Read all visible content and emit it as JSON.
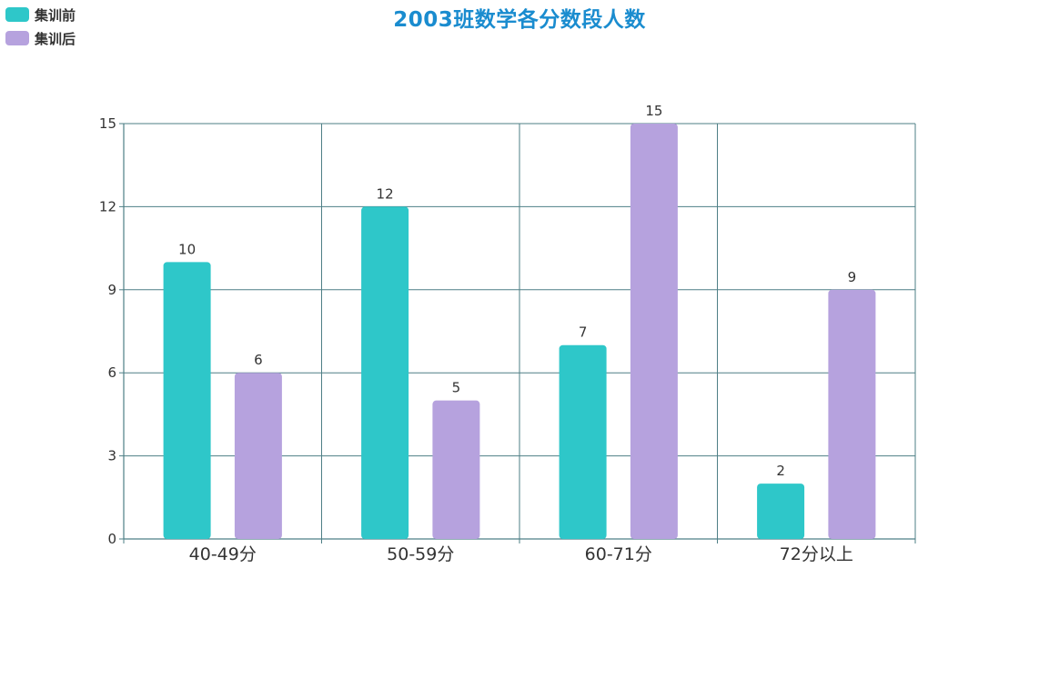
{
  "colors": {
    "before": "#2ec7c9",
    "after": "#b6a2de",
    "title": "#1a8ccf",
    "axis": "#4e7f86"
  },
  "chart_data": {
    "type": "bar",
    "title": "2003班数学各分数段人数",
    "categories": [
      "40-49分",
      "50-59分",
      "60-71分",
      "72分以上"
    ],
    "series": [
      {
        "name": "集训前",
        "values": [
          10,
          12,
          7,
          2
        ]
      },
      {
        "name": "集训后",
        "values": [
          6,
          5,
          15,
          9
        ]
      }
    ],
    "ylim": [
      0,
      15
    ],
    "yticks": [
      0,
      3,
      6,
      9,
      12,
      15
    ],
    "grid": true,
    "legend_position": "top-left",
    "data_labels": true
  }
}
